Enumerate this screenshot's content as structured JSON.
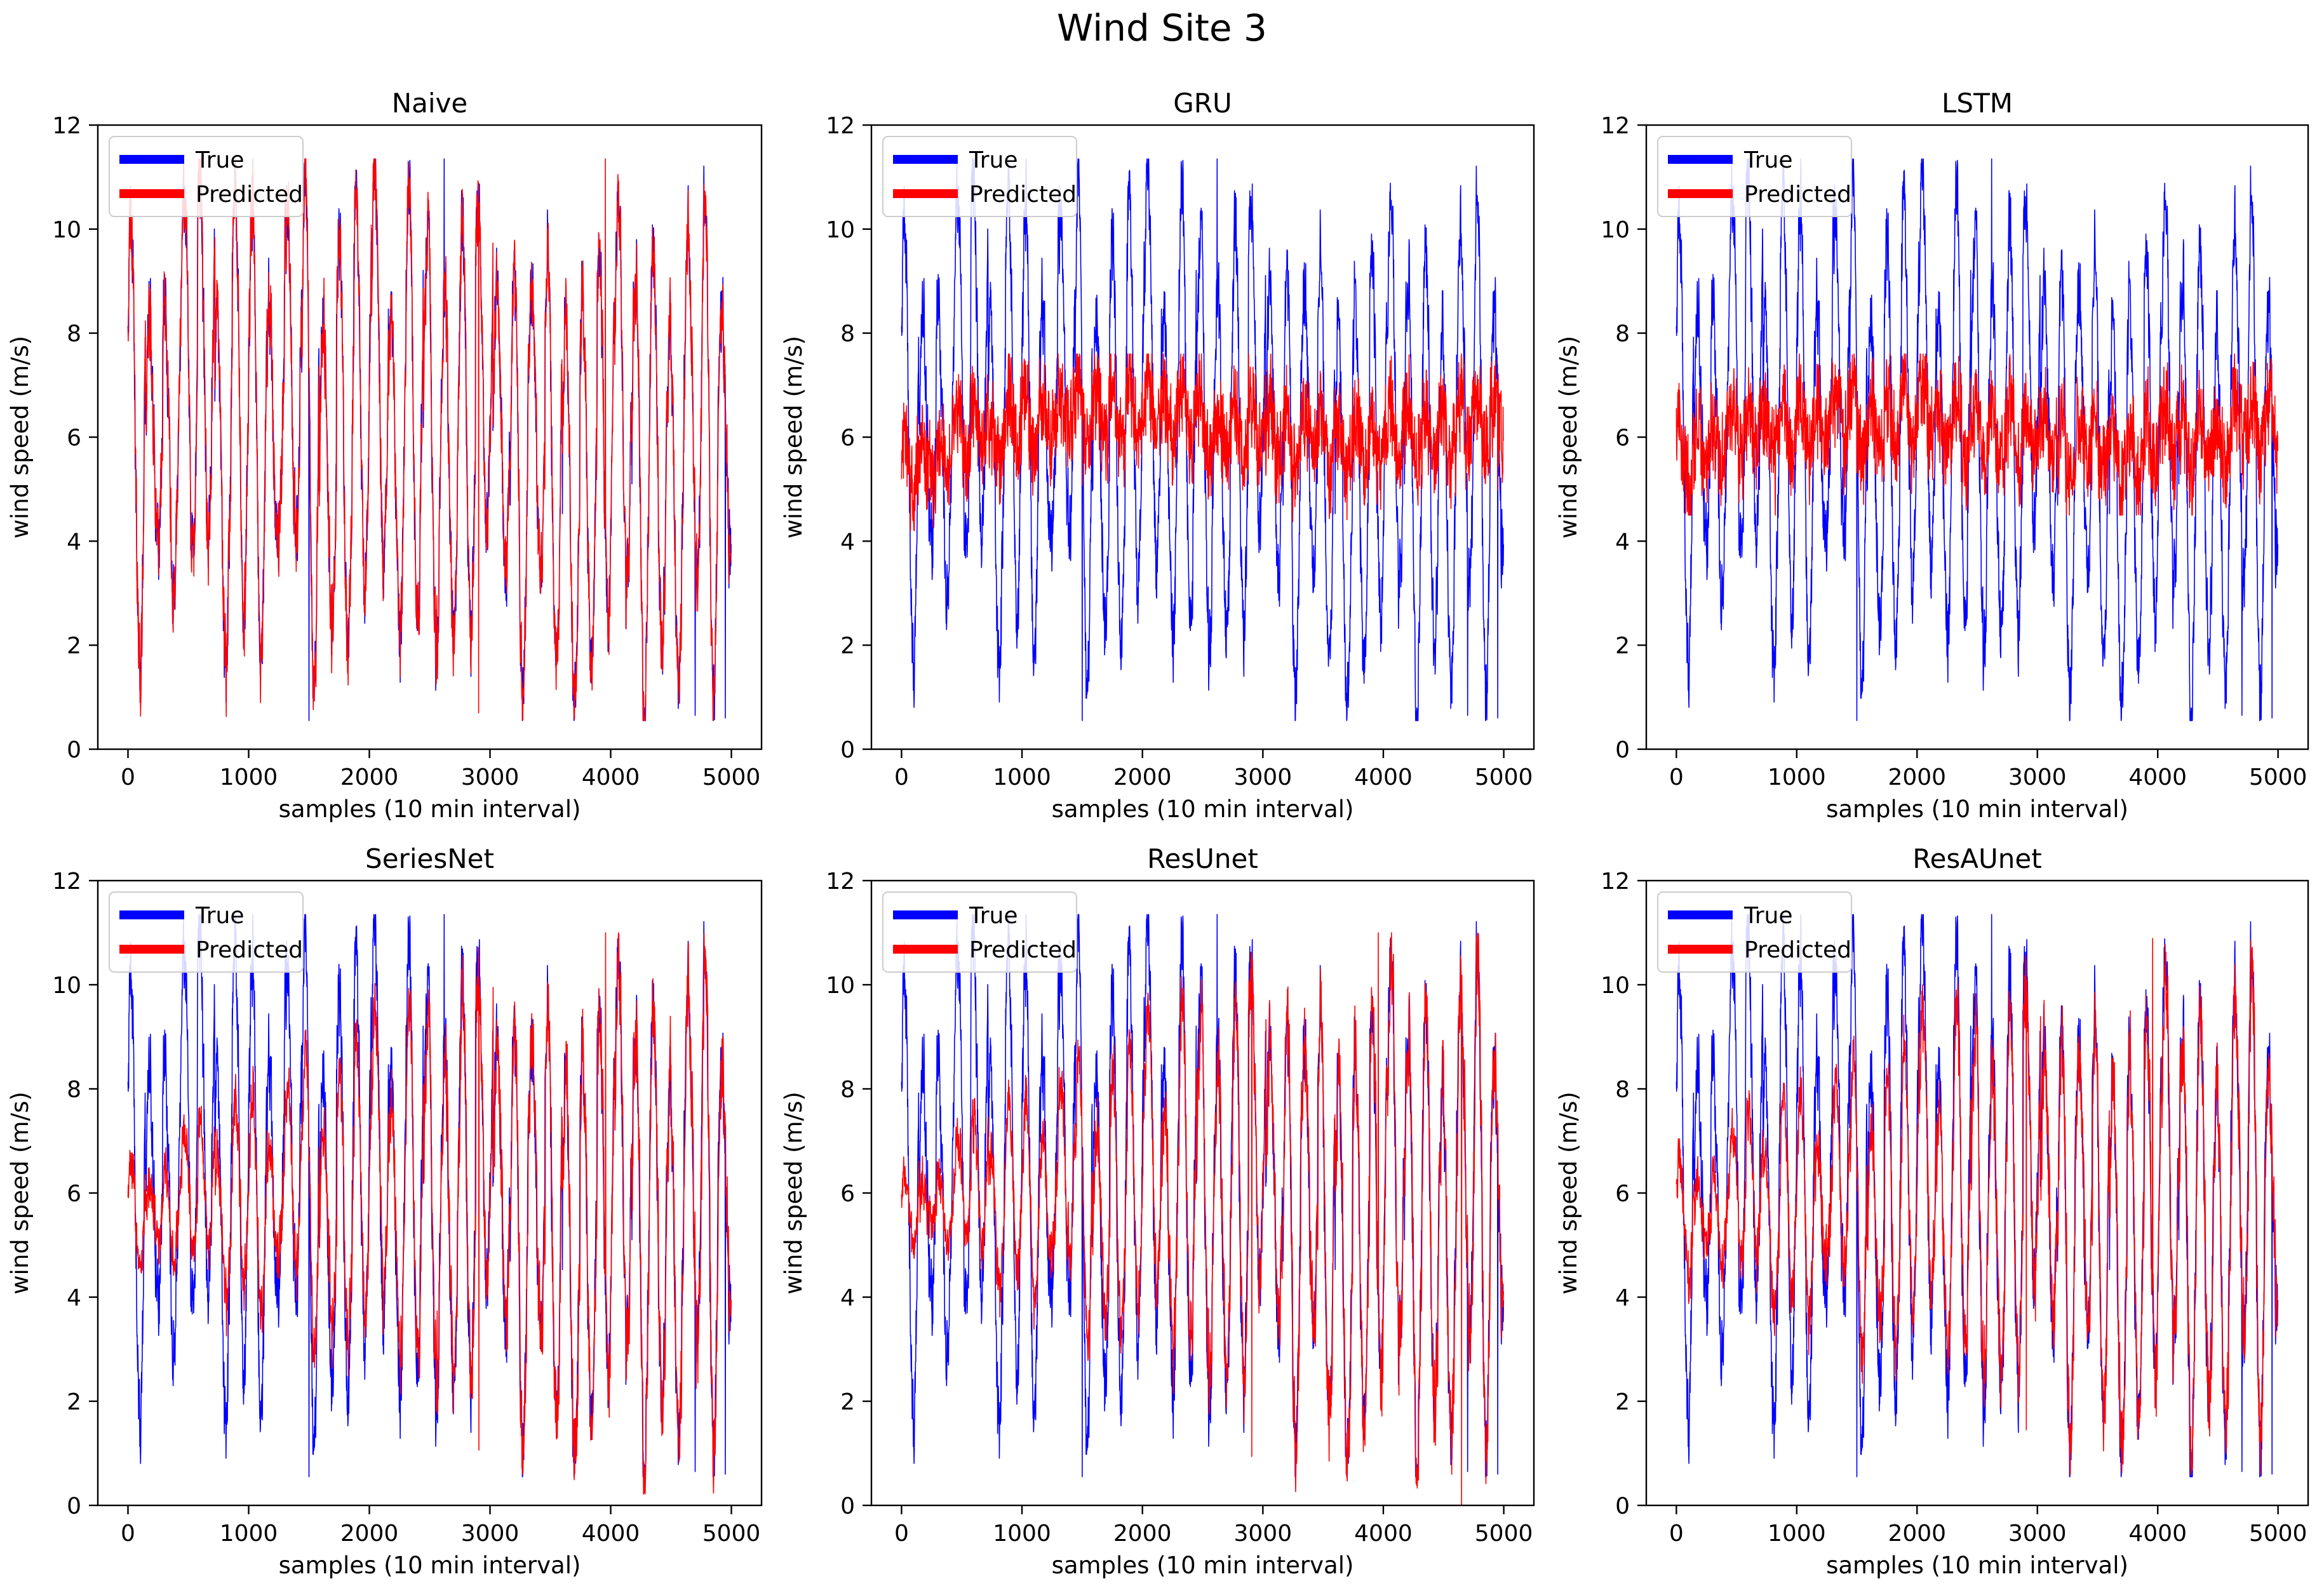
{
  "figure_title": "Wind Site 3",
  "colors": {
    "true": "#0000ff",
    "predicted": "#ff0000",
    "axes": "#000000"
  },
  "chart_data": [
    {
      "type": "line",
      "title": "Naive",
      "xlabel": "samples (10 min interval)",
      "ylabel": "wind speed (m/s)",
      "xlim": [
        -250,
        5250
      ],
      "ylim": [
        0,
        12
      ],
      "xticks": [
        0,
        1000,
        2000,
        3000,
        4000,
        5000
      ],
      "yticks": [
        0,
        2,
        4,
        6,
        8,
        10,
        12
      ],
      "legend": {
        "position": "top-left",
        "entries": [
          "True",
          "Predicted"
        ]
      },
      "series": [
        {
          "name": "True",
          "color": "#0000ff",
          "model": "full",
          "x_range": [
            0,
            5000
          ],
          "peak_max": 11.35,
          "trough_min": 0.55
        },
        {
          "name": "Predicted",
          "color": "#ff0000",
          "model": "naive",
          "x_range": [
            0,
            5000
          ],
          "peak_max": 11.35,
          "trough_min": 0.55
        }
      ]
    },
    {
      "type": "line",
      "title": "GRU",
      "xlabel": "samples (10 min interval)",
      "ylabel": "wind speed (m/s)",
      "xlim": [
        -250,
        5250
      ],
      "ylim": [
        0,
        12
      ],
      "xticks": [
        0,
        1000,
        2000,
        3000,
        4000,
        5000
      ],
      "yticks": [
        0,
        2,
        4,
        6,
        8,
        10,
        12
      ],
      "legend": {
        "position": "top-left",
        "entries": [
          "True",
          "Predicted"
        ]
      },
      "series": [
        {
          "name": "True",
          "color": "#0000ff",
          "model": "full",
          "x_range": [
            0,
            5000
          ],
          "peak_max": 11.35,
          "trough_min": 0.55
        },
        {
          "name": "Predicted",
          "color": "#ff0000",
          "model": "band",
          "x_range": [
            0,
            5000
          ],
          "mean_start": 5.4,
          "mean_end": 6.3,
          "band_range": [
            4.2,
            7.6
          ]
        }
      ]
    },
    {
      "type": "line",
      "title": "LSTM",
      "xlabel": "samples (10 min interval)",
      "ylabel": "wind speed (m/s)",
      "xlim": [
        -250,
        5250
      ],
      "ylim": [
        0,
        12
      ],
      "xticks": [
        0,
        1000,
        2000,
        3000,
        4000,
        5000
      ],
      "yticks": [
        0,
        2,
        4,
        6,
        8,
        10,
        12
      ],
      "legend": {
        "position": "top-left",
        "entries": [
          "True",
          "Predicted"
        ]
      },
      "series": [
        {
          "name": "True",
          "color": "#0000ff",
          "model": "full",
          "x_range": [
            0,
            5000
          ],
          "peak_max": 11.35,
          "trough_min": 0.55
        },
        {
          "name": "Predicted",
          "color": "#ff0000",
          "model": "band",
          "x_range": [
            0,
            5000
          ],
          "mean_start": 5.6,
          "mean_end": 6.2,
          "band_range": [
            4.5,
            7.6
          ]
        }
      ]
    },
    {
      "type": "line",
      "title": "SeriesNet",
      "xlabel": "samples (10 min interval)",
      "ylabel": "wind speed (m/s)",
      "xlim": [
        -250,
        5250
      ],
      "ylim": [
        0,
        12
      ],
      "xticks": [
        0,
        1000,
        2000,
        3000,
        4000,
        5000
      ],
      "yticks": [
        0,
        2,
        4,
        6,
        8,
        10,
        12
      ],
      "legend": {
        "position": "top-left",
        "entries": [
          "True",
          "Predicted"
        ]
      },
      "series": [
        {
          "name": "True",
          "color": "#0000ff",
          "model": "full",
          "x_range": [
            0,
            5000
          ],
          "peak_max": 11.35,
          "trough_min": 0.55
        },
        {
          "name": "Predicted",
          "color": "#ff0000",
          "model": "growing",
          "x_range": [
            0,
            5000
          ],
          "start_value": 5.5,
          "amp_start": 0.2,
          "amp_end": 1.0
        }
      ]
    },
    {
      "type": "line",
      "title": "ResUnet",
      "xlabel": "samples (10 min interval)",
      "ylabel": "wind speed (m/s)",
      "xlim": [
        -250,
        5250
      ],
      "ylim": [
        0,
        12
      ],
      "xticks": [
        0,
        1000,
        2000,
        3000,
        4000,
        5000
      ],
      "yticks": [
        0,
        2,
        4,
        6,
        8,
        10,
        12
      ],
      "legend": {
        "position": "top-left",
        "entries": [
          "True",
          "Predicted"
        ]
      },
      "series": [
        {
          "name": "True",
          "color": "#0000ff",
          "model": "full",
          "x_range": [
            0,
            5000
          ],
          "peak_max": 11.35,
          "trough_min": 0.55
        },
        {
          "name": "Predicted",
          "color": "#ff0000",
          "model": "growing",
          "x_range": [
            0,
            5000
          ],
          "start_value": 5.7,
          "amp_start": 0.15,
          "amp_end": 1.0,
          "min_spike": {
            "x": 4650,
            "y": 0.0
          }
        }
      ]
    },
    {
      "type": "line",
      "title": "ResAUnet",
      "xlabel": "samples (10 min interval)",
      "ylabel": "wind speed (m/s)",
      "xlim": [
        -250,
        5250
      ],
      "ylim": [
        0,
        12
      ],
      "xticks": [
        0,
        1000,
        2000,
        3000,
        4000,
        5000
      ],
      "yticks": [
        0,
        2,
        4,
        6,
        8,
        10,
        12
      ],
      "legend": {
        "position": "top-left",
        "entries": [
          "True",
          "Predicted"
        ]
      },
      "series": [
        {
          "name": "True",
          "color": "#0000ff",
          "model": "full",
          "x_range": [
            0,
            5000
          ],
          "peak_max": 11.35,
          "trough_min": 0.55
        },
        {
          "name": "Predicted",
          "color": "#ff0000",
          "model": "growing",
          "x_range": [
            0,
            5000
          ],
          "start_value": 5.4,
          "amp_start": 0.25,
          "amp_end": 0.95
        }
      ]
    }
  ]
}
